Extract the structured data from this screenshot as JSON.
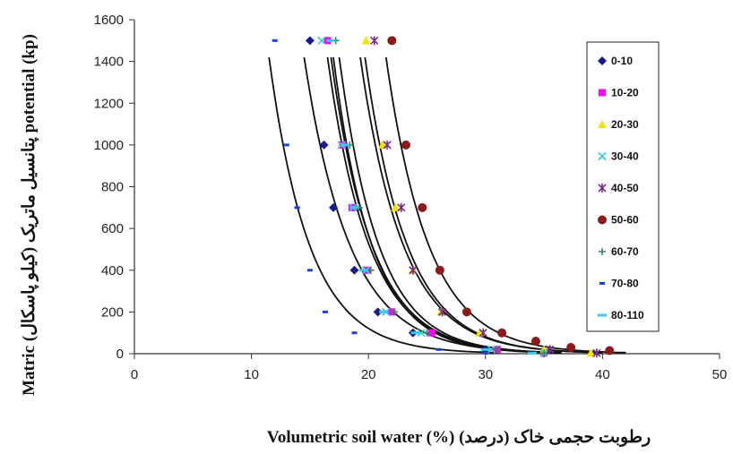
{
  "chart_data": {
    "type": "scatter",
    "xlabel": "Volumetric soil water (%) رطوبت حجمی خاک (درصد)",
    "ylabel": "Matric (کیلو پاسکال) پتانسیل ماتریک potential (kp)",
    "xlim": [
      0,
      50
    ],
    "ylim": [
      0,
      1600
    ],
    "x_ticks": [
      "0",
      "10",
      "20",
      "30",
      "40",
      "50"
    ],
    "y_ticks": [
      "0",
      "200",
      "400",
      "600",
      "800",
      "1000",
      "1200",
      "1400",
      "1600"
    ],
    "grid": false,
    "legend_position": "right",
    "series": [
      {
        "name": "0-10",
        "marker": "diamond",
        "color": "#1a1a8c",
        "points": [
          [
            15,
            1500
          ],
          [
            16.2,
            1000
          ],
          [
            17,
            700
          ],
          [
            18.8,
            400
          ],
          [
            20.8,
            200
          ],
          [
            23.8,
            100
          ],
          [
            30,
            20
          ],
          [
            35,
            3
          ]
        ],
        "fit": {
          "residual": 14.5,
          "saturated": 36.5
        }
      },
      {
        "name": "10-20",
        "marker": "square",
        "color": "#ff00ff",
        "points": [
          [
            16.5,
            1500
          ],
          [
            17.8,
            1000
          ],
          [
            18.6,
            700
          ],
          [
            19.9,
            400
          ],
          [
            22,
            200
          ],
          [
            25.4,
            100
          ],
          [
            31,
            20
          ],
          [
            35,
            3
          ]
        ],
        "fit": {
          "residual": 16.5,
          "saturated": 36.5
        }
      },
      {
        "name": "20-30",
        "marker": "triangle",
        "color": "#f2e600",
        "points": [
          [
            19.8,
            1500
          ],
          [
            21.2,
            1000
          ],
          [
            22.3,
            700
          ],
          [
            23.8,
            400
          ],
          [
            26.2,
            200
          ],
          [
            29.5,
            100
          ],
          [
            35,
            20
          ],
          [
            39,
            3
          ]
        ],
        "fit": {
          "residual": 19.3,
          "saturated": 40
        }
      },
      {
        "name": "30-40",
        "marker": "x",
        "color": "#33cccc",
        "points": [
          [
            16,
            1500
          ],
          [
            17.7,
            1000
          ],
          [
            18.7,
            700
          ],
          [
            19.8,
            400
          ],
          [
            21.5,
            200
          ],
          [
            24.5,
            100
          ],
          [
            30.5,
            20
          ],
          [
            35,
            3
          ]
        ],
        "fit": {
          "residual": 16.8,
          "saturated": 36.5
        }
      },
      {
        "name": "40-50",
        "marker": "star",
        "color": "#7a2a8c",
        "points": [
          [
            20.5,
            1500
          ],
          [
            21.6,
            1000
          ],
          [
            22.8,
            700
          ],
          [
            23.8,
            400
          ],
          [
            26.3,
            200
          ],
          [
            29.8,
            100
          ],
          [
            35.5,
            20
          ],
          [
            39.5,
            3
          ]
        ],
        "fit": {
          "residual": 19.7,
          "saturated": 40
        }
      },
      {
        "name": "50-60",
        "marker": "circle",
        "color": "#8b1a1a",
        "points": [
          [
            22,
            1500
          ],
          [
            23.2,
            1000
          ],
          [
            24.6,
            700
          ],
          [
            26.1,
            400
          ],
          [
            28.4,
            200
          ],
          [
            31.4,
            100
          ],
          [
            34.3,
            60
          ],
          [
            37.3,
            30
          ],
          [
            40.6,
            15
          ]
        ],
        "fit": {
          "residual": 21.5,
          "saturated": 42
        }
      },
      {
        "name": "60-70",
        "marker": "plus",
        "color": "#2e8b57",
        "points": [
          [
            17.2,
            1500
          ],
          [
            18.4,
            1000
          ],
          [
            19.2,
            700
          ],
          [
            20.2,
            400
          ],
          [
            22.2,
            200
          ],
          [
            25,
            100
          ],
          [
            31,
            20
          ],
          [
            35,
            3
          ]
        ],
        "fit": {
          "residual": 17.5,
          "saturated": 36.5
        }
      },
      {
        "name": "70-80",
        "marker": "dash",
        "color": "#1f3fdb",
        "points": [
          [
            12,
            1500
          ],
          [
            13,
            1000
          ],
          [
            13.9,
            700
          ],
          [
            15,
            400
          ],
          [
            16.3,
            200
          ],
          [
            18.8,
            100
          ],
          [
            26,
            20
          ],
          [
            30,
            3
          ]
        ],
        "fit": {
          "residual": 11.5,
          "saturated": 31
        }
      },
      {
        "name": "80-110",
        "marker": "dash-wide",
        "color": "#33ccee",
        "points": [
          [
            16.8,
            1500
          ],
          [
            18,
            1000
          ],
          [
            18.8,
            700
          ],
          [
            19.6,
            400
          ],
          [
            21.3,
            200
          ],
          [
            24,
            100
          ],
          [
            30,
            20
          ],
          [
            34,
            3
          ]
        ],
        "fit": {
          "residual": 17,
          "saturated": 35.5
        }
      }
    ]
  }
}
